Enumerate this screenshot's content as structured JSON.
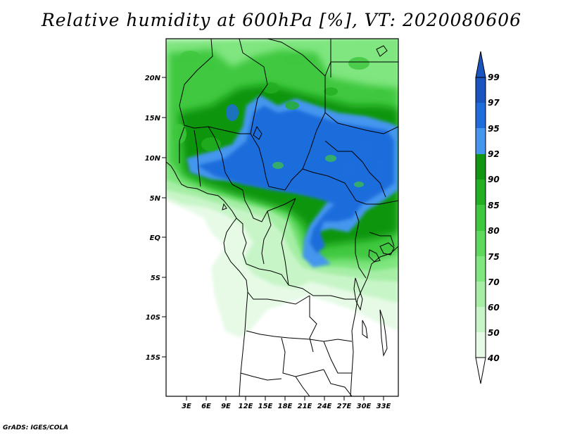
{
  "title": "Relative humidity at 600hPa [%], VT: 2020080606",
  "credit": "GrADS: IGES/COLA",
  "map": {
    "lat_labels": [
      "20N",
      "15N",
      "10N",
      "5N",
      "EQ",
      "5S",
      "10S",
      "15S"
    ],
    "lon_labels": [
      "3E",
      "6E",
      "9E",
      "12E",
      "15E",
      "18E",
      "21E",
      "24E",
      "27E",
      "30E",
      "33E"
    ]
  },
  "colorbar": {
    "levels": [
      "99",
      "97",
      "95",
      "92",
      "90",
      "85",
      "80",
      "75",
      "70",
      "60",
      "50",
      "40"
    ],
    "colors": [
      "#ffffff",
      "#e6fae6",
      "#c8f5c8",
      "#a6eea6",
      "#80e680",
      "#5ed95e",
      "#3fc83f",
      "#22b022",
      "#119611",
      "#4496ee",
      "#1f6ddc",
      "#1a55bf",
      "#1a55bf"
    ]
  }
}
